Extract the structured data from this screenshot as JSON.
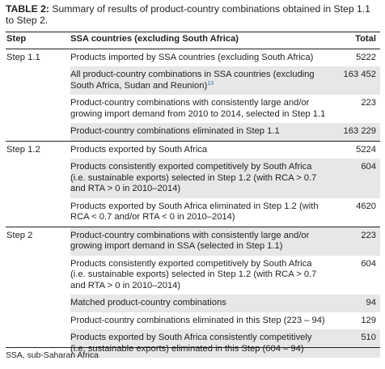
{
  "caption": {
    "label": "TABLE 2:",
    "text": " Summary of results of product-country combinations obtained in Step 1.1 to Step 2."
  },
  "table": {
    "headers": [
      "Step",
      "SSA countries (excluding South Africa)",
      "Total"
    ],
    "groups": [
      {
        "step": "Step 1.1",
        "rows": [
          {
            "desc": "Products imported by SSA countries (excluding South Africa)",
            "total": "5222",
            "shaded": false
          },
          {
            "desc": "All product-country combinations in SSA countries (excluding South Africa, Sudan and Reunion)",
            "ref": "13",
            "total": "163 452",
            "shaded": true
          },
          {
            "desc": "Product-country combinations with consistently large and/or growing import demand from 2010 to 2014, selected in Step 1.1",
            "total": "223",
            "shaded": false
          },
          {
            "desc": "Product-country combinations eliminated in Step 1.1",
            "total": "163 229",
            "shaded": true
          }
        ]
      },
      {
        "step": "Step 1.2",
        "rows": [
          {
            "desc": "Products exported by South Africa",
            "total": "5224",
            "shaded": false
          },
          {
            "desc": "Products consistently exported competitively by South Africa (i.e. sustainable exports) selected in Step 1.2 (with RCA > 0.7 and RTA > 0 in 2010–2014)",
            "total": "604",
            "shaded": true
          },
          {
            "desc": "Products exported by South Africa eliminated in Step 1.2 (with RCA < 0.7 and/or RTA < 0 in 2010–2014)",
            "total": "4620",
            "shaded": false
          }
        ]
      },
      {
        "step": "Step 2",
        "rows": [
          {
            "desc": "Product-country combinations with consistently large and/or growing import demand in SSA (selected in Step 1.1)",
            "total": "223",
            "shaded": true
          },
          {
            "desc": "Products consistently exported competitively by South Africa (i.e. sustainable exports) selected in Step 1.2 (with RCA > 0.7 and RTA > 0 in 2010–2014)",
            "total": "604",
            "shaded": false
          },
          {
            "desc": "Matched product-country combinations",
            "total": "94",
            "shaded": true
          },
          {
            "desc": "Product-country combinations eliminated in this Step (223 – 94)",
            "total": "129",
            "shaded": false
          },
          {
            "desc": "Products exported by South Africa consistently competitively (i.e. sustainable exports) eliminated in this Step (604 – 94)",
            "total": "510",
            "shaded": true
          }
        ]
      }
    ]
  },
  "footnote": "SSA, sub-Saharan Africa"
}
